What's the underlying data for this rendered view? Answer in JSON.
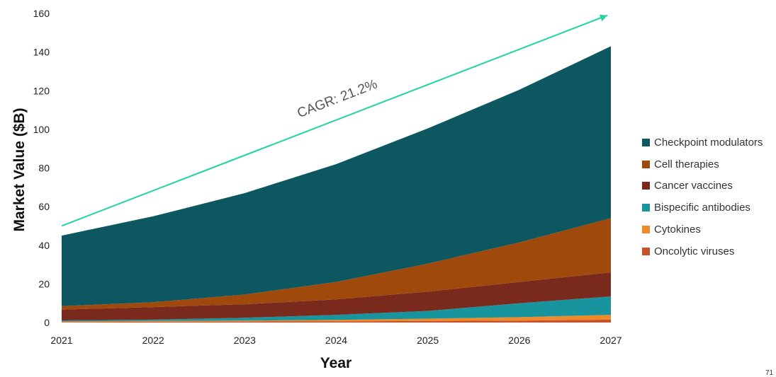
{
  "chart_data": {
    "type": "area",
    "stacked": true,
    "x": [
      "2021",
      "2022",
      "2023",
      "2024",
      "2025",
      "2026",
      "2027"
    ],
    "xlabel": "Year",
    "ylabel": "Market Value ($B)",
    "ylim": [
      0,
      160
    ],
    "yticks": [
      0,
      20,
      40,
      60,
      80,
      100,
      120,
      140,
      160
    ],
    "grid": false,
    "legend_position": "right",
    "series": [
      {
        "name": "Oncolytic viruses",
        "color": "#c8502a",
        "values": [
          0.3,
          0.4,
          0.5,
          0.6,
          0.8,
          1.0,
          1.5
        ]
      },
      {
        "name": "Cytokines",
        "color": "#ee8a2a",
        "values": [
          0.3,
          0.4,
          0.5,
          0.8,
          1.2,
          1.8,
          2.5
        ]
      },
      {
        "name": "Bispecific antibodies",
        "color": "#17949e",
        "values": [
          0.5,
          0.7,
          1.5,
          2.6,
          4.0,
          7.2,
          9.5
        ]
      },
      {
        "name": "Cancer vaccines",
        "color": "#7a2a1d",
        "values": [
          5.6,
          6.5,
          7.0,
          8.0,
          10.0,
          11.0,
          12.5
        ]
      },
      {
        "name": "Cell therapies",
        "color": "#a0490c",
        "values": [
          1.8,
          2.5,
          5.0,
          9.0,
          14.5,
          20.5,
          28.0
        ]
      },
      {
        "name": "Checkpoint modulators",
        "color": "#0d5761",
        "values": [
          36.5,
          44.5,
          52.5,
          61.0,
          70.0,
          79.0,
          89.0
        ]
      }
    ],
    "annotations": [
      {
        "text": "CAGR: 21.2%",
        "from_value": 50,
        "to_value": 159,
        "color": "#1ed4a0"
      }
    ]
  },
  "legend_order": [
    "Checkpoint modulators",
    "Cell therapies",
    "Cancer vaccines",
    "Bispecific antibodies",
    "Cytokines",
    "Oncolytic viruses"
  ],
  "page_number": "71"
}
